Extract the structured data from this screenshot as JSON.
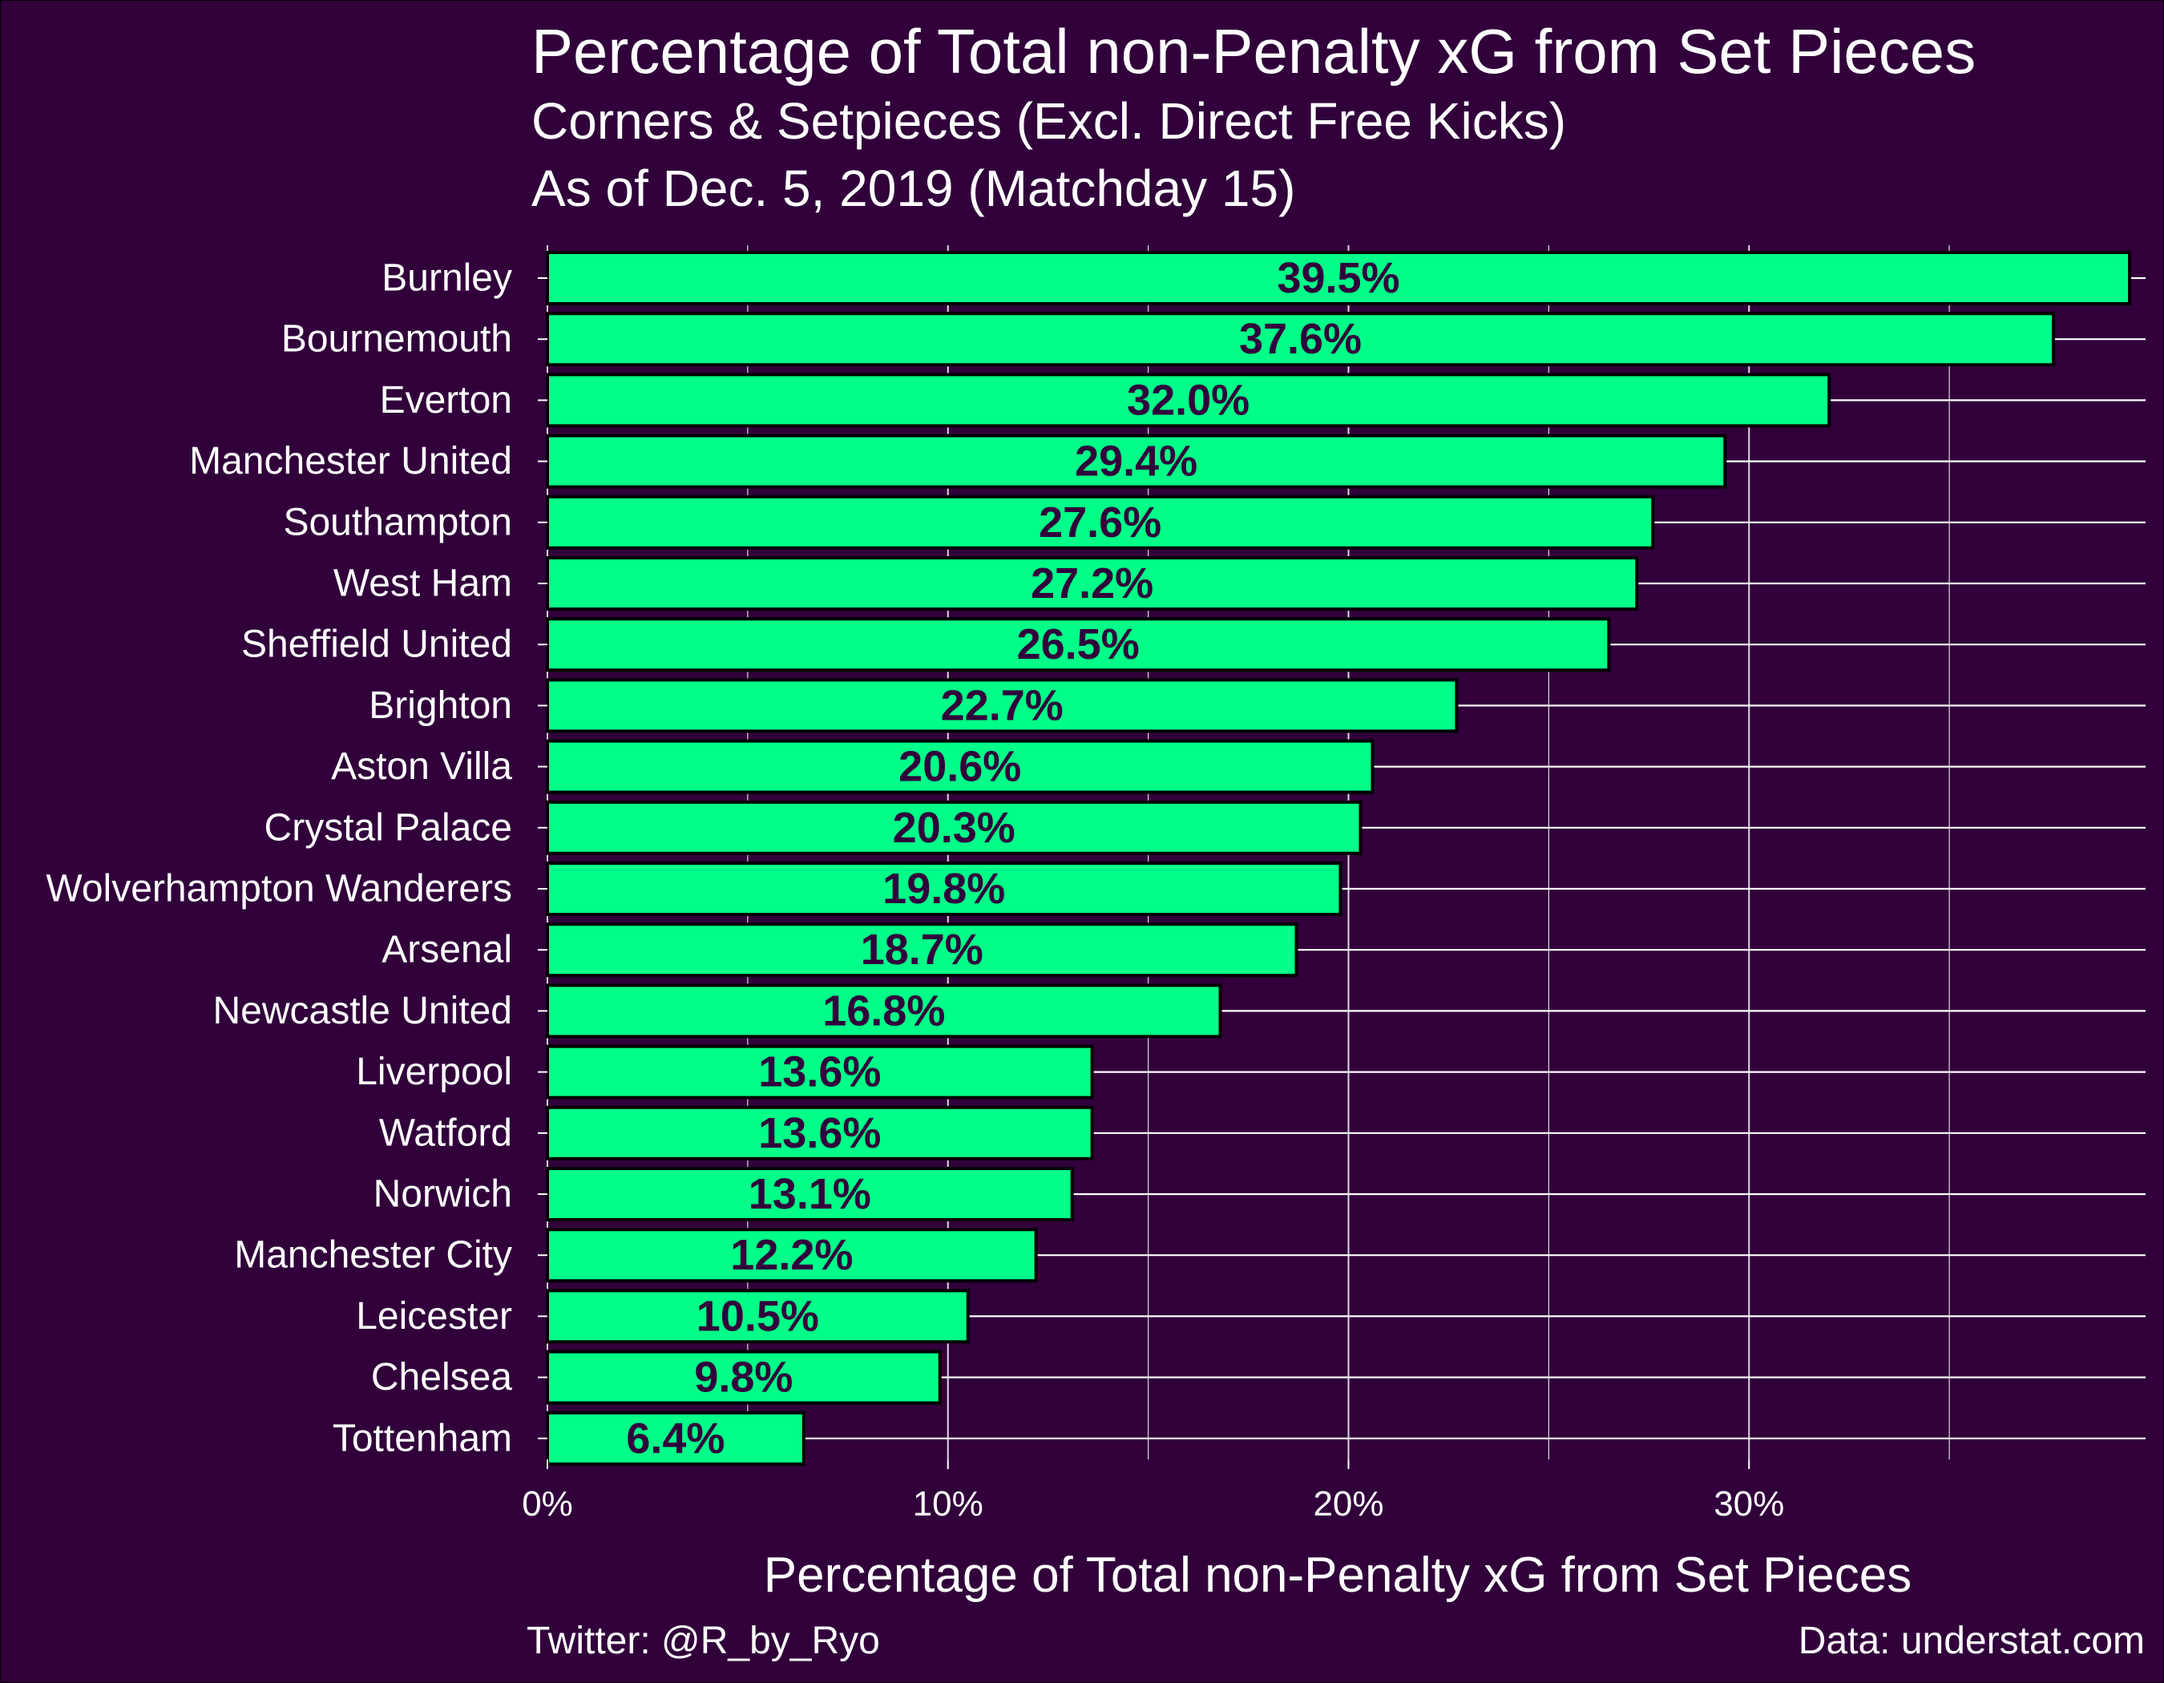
{
  "title": "Percentage of Total non-Penalty xG from Set Pieces",
  "subtitle_1": "Corners & Setpieces (Excl. Direct Free Kicks)",
  "subtitle_2": "As of Dec. 5, 2019 (Matchday 15)",
  "caption_left": "Twitter: @R_by_Ryo",
  "caption_right": "Data: understat.com",
  "colors": {
    "background": "#31003b",
    "bar_fill": "#00ff88",
    "bar_outline": "#000000",
    "label_text": "#31003b",
    "grid": "#ffffff",
    "text": "#ffffff"
  },
  "chart_data": {
    "type": "bar",
    "orientation": "horizontal",
    "title": "Percentage of Total non-Penalty xG from Set Pieces",
    "xlabel": "Percentage of Total non-Penalty xG from Set Pieces",
    "ylabel": "",
    "xlim": [
      0,
      39.5
    ],
    "x_ticks": [
      0,
      10,
      20,
      30
    ],
    "x_tick_labels": [
      "0%",
      "10%",
      "20%",
      "30%"
    ],
    "grid": true,
    "legend": "none",
    "categories": [
      "Burnley",
      "Bournemouth",
      "Everton",
      "Manchester United",
      "Southampton",
      "West Ham",
      "Sheffield United",
      "Brighton",
      "Aston Villa",
      "Crystal Palace",
      "Wolverhampton Wanderers",
      "Arsenal",
      "Newcastle United",
      "Liverpool",
      "Watford",
      "Norwich",
      "Manchester City",
      "Leicester",
      "Chelsea",
      "Tottenham"
    ],
    "values": [
      39.5,
      37.6,
      32.0,
      29.4,
      27.6,
      27.2,
      26.5,
      22.7,
      20.6,
      20.3,
      19.8,
      18.7,
      16.8,
      13.6,
      13.6,
      13.1,
      12.2,
      10.5,
      9.8,
      6.4
    ],
    "value_labels": [
      "39.5%",
      "37.6%",
      "32.0%",
      "29.4%",
      "27.6%",
      "27.2%",
      "26.5%",
      "22.7%",
      "20.6%",
      "20.3%",
      "19.8%",
      "18.7%",
      "16.8%",
      "13.6%",
      "13.6%",
      "13.1%",
      "12.2%",
      "10.5%",
      "9.8%",
      "6.4%"
    ]
  }
}
